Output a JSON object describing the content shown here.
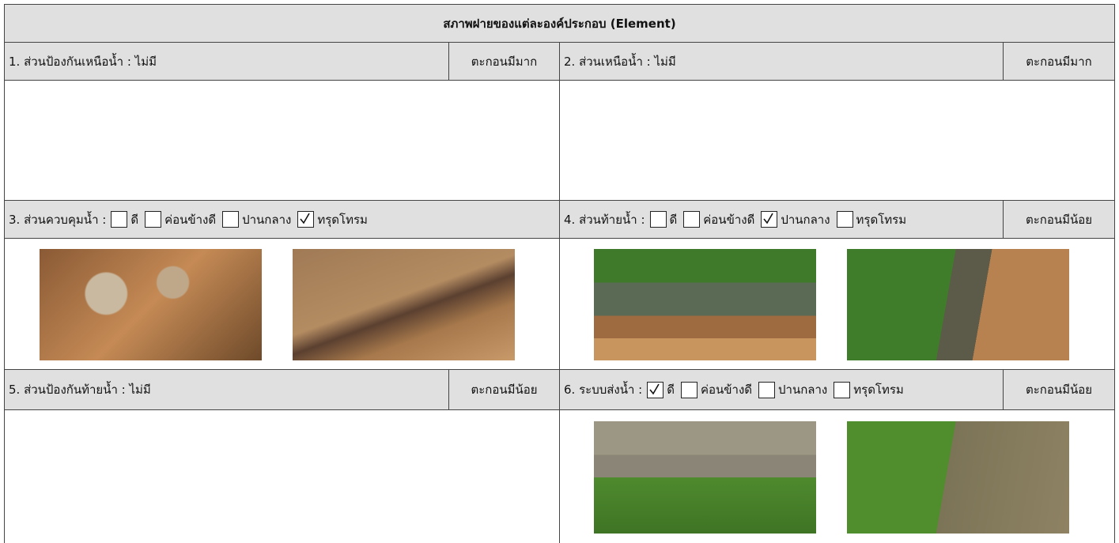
{
  "title": "สภาพฝายของแต่ละองค์ประกอบ (Element)",
  "sections": [
    {
      "label": "1. ส่วนป้องกันเหนือน้ำ : ไม่มี",
      "sediment": "ตะกอนมีมาก"
    },
    {
      "label": "2. ส่วนเหนือน้ำ : ไม่มี",
      "sediment": "ตะกอนมีมาก"
    },
    {
      "label": "3. ส่วนควบคุมน้ำ :",
      "options": [
        {
          "label": "ดี",
          "checked": false
        },
        {
          "label": "ค่อนข้างดี",
          "checked": false
        },
        {
          "label": "ปานกลาง",
          "checked": false
        },
        {
          "label": "ทรุดโทรม",
          "checked": true
        }
      ]
    },
    {
      "label": "4. ส่วนท้ายน้ำ :",
      "options": [
        {
          "label": "ดี",
          "checked": false
        },
        {
          "label": "ค่อนข้างดี",
          "checked": false
        },
        {
          "label": "ปานกลาง",
          "checked": true
        },
        {
          "label": "ทรุดโทรม",
          "checked": false
        }
      ],
      "sediment": "ตะกอนมีน้อย"
    },
    {
      "label": "5. ส่วนป้องกันท้ายน้ำ : ไม่มี",
      "sediment": "ตะกอนมีน้อย"
    },
    {
      "label": "6. ระบบส่งน้ำ :",
      "options": [
        {
          "label": "ดี",
          "checked": true
        },
        {
          "label": "ค่อนข้างดี",
          "checked": false
        },
        {
          "label": "ปานกลาง",
          "checked": false
        },
        {
          "label": "ทรุดโทรม",
          "checked": false
        }
      ],
      "sediment": "ตะกอนมีน้อย"
    }
  ]
}
